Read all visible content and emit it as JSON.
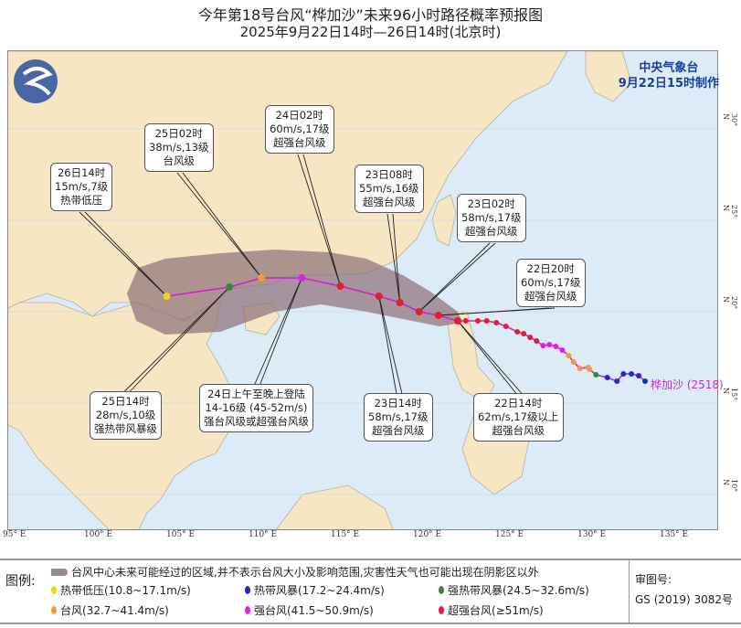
{
  "title": "今年第18号台风“桦加沙”未来96小时路径概率预报图",
  "subtitle": "2025年9月22日14时—26日14时(北京时)",
  "agency": {
    "name": "中央气象台",
    "issued": "9月22日15时制作"
  },
  "typhoon_label": "桦加沙 (2518)",
  "axes": {
    "lon_ticks": [
      "95° E",
      "100° E",
      "105° E",
      "110° E",
      "115° E",
      "120° E",
      "125° E",
      "130° E",
      "135° E"
    ],
    "lat_ticks": [
      "30° N",
      "25° N",
      "20° N",
      "15° N",
      "10° N"
    ]
  },
  "colors": {
    "tropical_depression": "#f2d21b",
    "tropical_storm": "#1c2fc4",
    "severe_tropical_storm": "#2e8b3a",
    "typhoon": "#f59a3c",
    "severe_typhoon": "#e020e0",
    "super_typhoon": "#e02030",
    "cone": "#9a7a80",
    "land": "#f7e6c4",
    "ocean": "#dcebf7"
  },
  "forecast_points": [
    {
      "time": "22日14时",
      "lon": 122.5,
      "lat": 19.5,
      "cat": "super_typhoon",
      "lines": [
        "22日14时",
        "62m/s,17级以上",
        "超强台风级"
      ]
    },
    {
      "time": "22日20时",
      "lon": 121.3,
      "lat": 19.8,
      "cat": "super_typhoon",
      "lines": [
        "22日20时",
        "60m/s,17级",
        "超强台风级"
      ]
    },
    {
      "time": "23日02时",
      "lon": 120.1,
      "lat": 20.0,
      "cat": "super_typhoon",
      "lines": [
        "23日02时",
        "58m/s,17级",
        "超强台风级"
      ]
    },
    {
      "time": "23日08时",
      "lon": 118.9,
      "lat": 20.5,
      "cat": "super_typhoon",
      "lines": [
        "23日08时",
        "55m/s,16级",
        "超强台风级"
      ]
    },
    {
      "time": "23日14时",
      "lon": 117.6,
      "lat": 20.85,
      "cat": "super_typhoon",
      "lines": [
        "23日14时",
        "58m/s,17级",
        "超强台风级"
      ]
    },
    {
      "time": "24日02时",
      "lon": 115.2,
      "lat": 21.4,
      "cat": "super_typhoon",
      "lines": [
        "24日02时",
        "60m/s,17级",
        "超强台风级"
      ]
    },
    {
      "time": "24日上午至晚上登陆",
      "lon": 112.8,
      "lat": 21.85,
      "cat": "severe_typhoon",
      "lines": [
        "24日上午至晚上登陆",
        "14-16级 (45-52m/s)",
        "强台风级或超强台风级"
      ]
    },
    {
      "time": "25日02时",
      "lon": 110.3,
      "lat": 21.85,
      "cat": "typhoon",
      "lines": [
        "25日02时",
        "38m/s,13级",
        "台风级"
      ]
    },
    {
      "time": "25日14时",
      "lon": 108.3,
      "lat": 21.35,
      "cat": "severe_tropical_storm",
      "lines": [
        "25日14时",
        "28m/s,10级",
        "强热带风暴级"
      ]
    },
    {
      "time": "26日14时",
      "lon": 104.4,
      "lat": 20.85,
      "cat": "tropical_depression",
      "lines": [
        "26日14时",
        "15m/s,7级",
        "热带低压"
      ]
    }
  ],
  "past_track": [
    {
      "lon": 134.15,
      "lat": 16.2,
      "cat": "tropical_storm"
    },
    {
      "lon": 133.75,
      "lat": 16.5,
      "cat": "tropical_storm"
    },
    {
      "lon": 133.3,
      "lat": 16.6,
      "cat": "tropical_storm"
    },
    {
      "lon": 132.8,
      "lat": 16.6,
      "cat": "tropical_storm"
    },
    {
      "lon": 132.4,
      "lat": 16.2,
      "cat": "tropical_storm"
    },
    {
      "lon": 131.8,
      "lat": 16.4,
      "cat": "tropical_storm"
    },
    {
      "lon": 131.1,
      "lat": 16.55,
      "cat": "severe_tropical_storm"
    },
    {
      "lon": 130.7,
      "lat": 16.85,
      "cat": "typhoon"
    },
    {
      "lon": 130.6,
      "lat": 16.95,
      "cat": "typhoon"
    },
    {
      "lon": 130.1,
      "lat": 16.9,
      "cat": "typhoon"
    },
    {
      "lon": 129.7,
      "lat": 17.25,
      "cat": "typhoon"
    },
    {
      "lon": 129.4,
      "lat": 17.6,
      "cat": "typhoon"
    },
    {
      "lon": 129.0,
      "lat": 17.9,
      "cat": "severe_typhoon"
    },
    {
      "lon": 128.6,
      "lat": 18.1,
      "cat": "severe_typhoon"
    },
    {
      "lon": 128.2,
      "lat": 18.2,
      "cat": "severe_typhoon"
    },
    {
      "lon": 127.8,
      "lat": 18.15,
      "cat": "severe_typhoon"
    },
    {
      "lon": 127.4,
      "lat": 18.4,
      "cat": "super_typhoon"
    },
    {
      "lon": 127.0,
      "lat": 18.6,
      "cat": "super_typhoon"
    },
    {
      "lon": 126.6,
      "lat": 18.8,
      "cat": "super_typhoon"
    },
    {
      "lon": 126.2,
      "lat": 18.9,
      "cat": "super_typhoon"
    },
    {
      "lon": 125.5,
      "lat": 19.2,
      "cat": "super_typhoon"
    },
    {
      "lon": 124.9,
      "lat": 19.4,
      "cat": "super_typhoon"
    },
    {
      "lon": 124.3,
      "lat": 19.5,
      "cat": "super_typhoon"
    },
    {
      "lon": 123.75,
      "lat": 19.5,
      "cat": "super_typhoon"
    },
    {
      "lon": 123.0,
      "lat": 19.5,
      "cat": "super_typhoon"
    },
    {
      "lon": 122.5,
      "lat": 19.5,
      "cat": "super_typhoon"
    }
  ],
  "legend": {
    "label": "图例:",
    "cone": "台风中心未来可能经过的区域,并不表示台风大小及影响范围,灾害性天气也可能出现在阴影区以外",
    "items": [
      {
        "cat": "tropical_depression",
        "text": "热带低压(10.8~17.1m/s)"
      },
      {
        "cat": "tropical_storm",
        "text": "热带风暴(17.2~24.4m/s)"
      },
      {
        "cat": "severe_tropical_storm",
        "text": "强热带风暴(24.5~32.6m/s)"
      },
      {
        "cat": "typhoon",
        "text": "台风(32.7~41.4m/s)"
      },
      {
        "cat": "severe_typhoon",
        "text": "强台风(41.5~50.9m/s)"
      },
      {
        "cat": "super_typhoon",
        "text": "超强台风(≥51m/s)"
      }
    ],
    "review_label": "审图号:",
    "review_no": "GS (2019) 3082号"
  }
}
